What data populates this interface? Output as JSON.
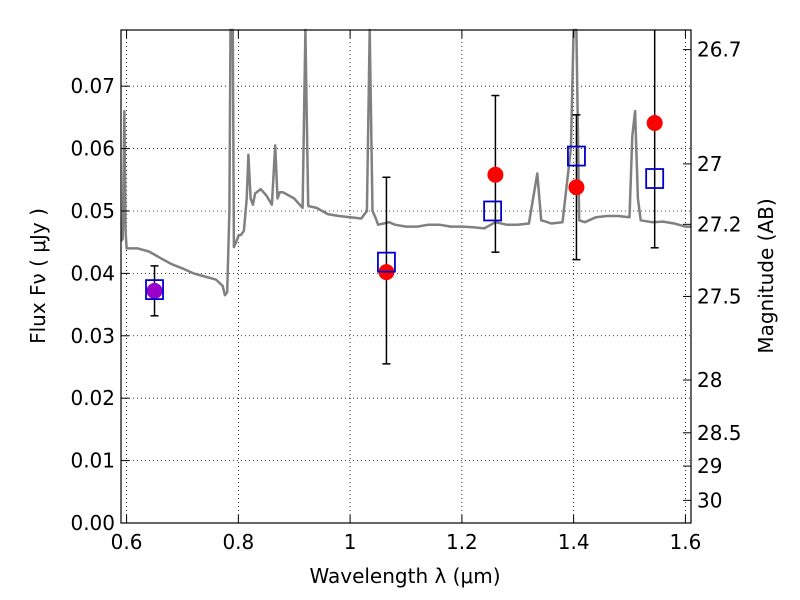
{
  "chart_data": {
    "type": "scatter",
    "title": "",
    "xlabel": "Wavelength  λ (μm)",
    "ylabel": "Flux  Fν  ( μJy )",
    "y2label": "Magnitude (AB)",
    "xlim": [
      0.59,
      1.61
    ],
    "ylim": [
      0.0,
      0.079
    ],
    "grid": true,
    "x_ticks": [
      0.6,
      0.8,
      1.0,
      1.2,
      1.4,
      1.6
    ],
    "x_tick_labels": [
      "0.6",
      "0.8",
      "1",
      "1.2",
      "1.4",
      "1.6"
    ],
    "y_ticks": [
      0.0,
      0.01,
      0.02,
      0.03,
      0.04,
      0.05,
      0.06,
      0.07
    ],
    "y_tick_labels": [
      "0.00",
      "0.01",
      "0.02",
      "0.03",
      "0.04",
      "0.05",
      "0.06",
      "0.07"
    ],
    "y2_ticks": [
      26.7,
      27,
      27.2,
      27.5,
      28,
      28.5,
      29,
      30
    ],
    "y2_tick_labels": [
      "26.7",
      "27",
      "27.2",
      "27.5",
      "28",
      "28.5",
      "29",
      "30"
    ],
    "colors": {
      "model": "#808080",
      "observed": "#ff0000",
      "model_photometry": "#0000cc",
      "overlap": "#9900cc",
      "errorbar": "#000000"
    },
    "model_spectrum": {
      "x": [
        0.59,
        0.593,
        0.596,
        0.598,
        0.6,
        0.62,
        0.64,
        0.66,
        0.68,
        0.7,
        0.72,
        0.74,
        0.76,
        0.772,
        0.776,
        0.78,
        0.784,
        0.786,
        0.788,
        0.79,
        0.792,
        0.795,
        0.8,
        0.805,
        0.81,
        0.815,
        0.818,
        0.822,
        0.826,
        0.83,
        0.84,
        0.85,
        0.86,
        0.866,
        0.87,
        0.874,
        0.88,
        0.9,
        0.915,
        0.92,
        0.925,
        0.94,
        0.96,
        0.98,
        1.0,
        1.02,
        1.03,
        1.035,
        1.04,
        1.045,
        1.05,
        1.06,
        1.07,
        1.08,
        1.1,
        1.12,
        1.14,
        1.16,
        1.18,
        1.2,
        1.22,
        1.24,
        1.26,
        1.28,
        1.3,
        1.32,
        1.335,
        1.342,
        1.35,
        1.36,
        1.38,
        1.395,
        1.4,
        1.405,
        1.41,
        1.42,
        1.44,
        1.46,
        1.48,
        1.5,
        1.505,
        1.51,
        1.515,
        1.52,
        1.54,
        1.56,
        1.58,
        1.6,
        1.61
      ],
      "y": [
        0.0452,
        0.0455,
        0.066,
        0.047,
        0.044,
        0.044,
        0.0435,
        0.0425,
        0.0415,
        0.0408,
        0.04,
        0.0395,
        0.039,
        0.038,
        0.0365,
        0.037,
        0.05,
        0.079,
        0.079,
        0.079,
        0.0442,
        0.0448,
        0.046,
        0.0462,
        0.0468,
        0.052,
        0.059,
        0.052,
        0.051,
        0.0528,
        0.0535,
        0.0525,
        0.051,
        0.0605,
        0.052,
        0.053,
        0.053,
        0.052,
        0.0505,
        0.079,
        0.0508,
        0.0505,
        0.0495,
        0.0492,
        0.049,
        0.0488,
        0.05,
        0.079,
        0.05,
        0.049,
        0.0478,
        0.048,
        0.0482,
        0.0478,
        0.0475,
        0.0475,
        0.0478,
        0.0478,
        0.0475,
        0.0475,
        0.0474,
        0.0472,
        0.0482,
        0.0478,
        0.0478,
        0.048,
        0.056,
        0.0485,
        0.0483,
        0.048,
        0.0482,
        0.06,
        0.079,
        0.079,
        0.0485,
        0.0482,
        0.049,
        0.0492,
        0.0492,
        0.049,
        0.062,
        0.066,
        0.052,
        0.0485,
        0.0482,
        0.0483,
        0.048,
        0.0475,
        0.0475
      ]
    },
    "observed": [
      {
        "x": 0.65,
        "y": 0.0372,
        "yerr_low": 0.004,
        "yerr_high": 0.004,
        "color": "#9900cc"
      },
      {
        "x": 1.065,
        "y": 0.0402,
        "yerr_low": 0.0147,
        "yerr_high": 0.0152,
        "color": "#ff0000"
      },
      {
        "x": 1.26,
        "y": 0.0558,
        "yerr_low": 0.0124,
        "yerr_high": 0.0127,
        "color": "#ff0000"
      },
      {
        "x": 1.405,
        "y": 0.0538,
        "yerr_low": 0.0116,
        "yerr_high": 0.0116,
        "color": "#ff0000"
      },
      {
        "x": 1.545,
        "y": 0.0641,
        "yerr_low": 0.02,
        "yerr_high": 0.016,
        "color": "#ff0000"
      }
    ],
    "model_photometry": [
      {
        "x": 0.65,
        "y": 0.0374
      },
      {
        "x": 1.065,
        "y": 0.0418
      },
      {
        "x": 1.255,
        "y": 0.05
      },
      {
        "x": 1.405,
        "y": 0.0588
      },
      {
        "x": 1.545,
        "y": 0.0552
      }
    ]
  }
}
